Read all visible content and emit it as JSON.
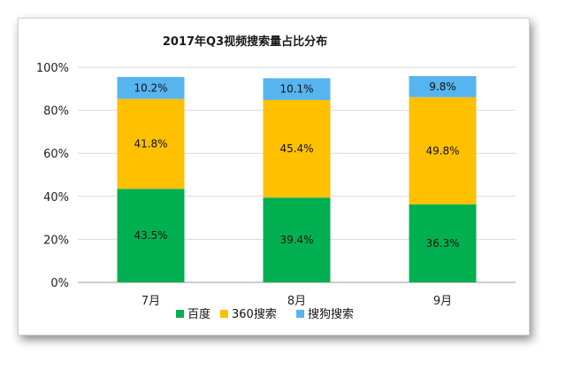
{
  "chart_data": {
    "type": "bar",
    "stacked": true,
    "title": "2017年Q3视频搜索量占比分布",
    "categories": [
      "7月",
      "8月",
      "9月"
    ],
    "ylim": [
      0,
      100
    ],
    "y_ticks": [
      "0%",
      "20%",
      "40%",
      "60%",
      "80%",
      "100%"
    ],
    "grid": true,
    "legend_position": "bottom",
    "series": [
      {
        "name": "百度",
        "values": [
          43.5,
          39.4,
          36.3
        ],
        "labels": [
          "43.5%",
          "39.4%",
          "36.3%"
        ],
        "color": "#00b050"
      },
      {
        "name": "360搜索",
        "values": [
          41.8,
          45.4,
          49.8
        ],
        "labels": [
          "41.8%",
          "45.4%",
          "49.8%"
        ],
        "color": "#ffc000"
      },
      {
        "name": "搜狗搜索",
        "values": [
          10.2,
          10.1,
          9.8
        ],
        "labels": [
          "10.2%",
          "10.1%",
          "9.8%"
        ],
        "color": "#56b4ef"
      }
    ]
  }
}
